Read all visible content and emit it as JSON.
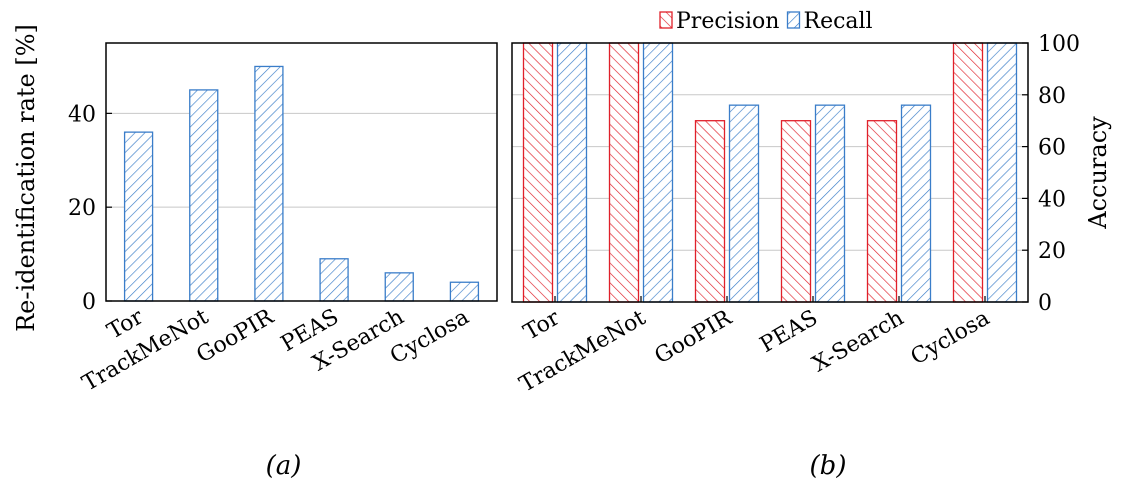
{
  "chart_data": [
    {
      "type": "bar",
      "caption": "(a)",
      "categories": [
        "Tor",
        "TrackMeNot",
        "GooPIR",
        "PEAS",
        "X-Search",
        "Cyclosa"
      ],
      "series": [
        {
          "values": [
            36,
            45,
            50,
            9,
            6,
            4
          ],
          "color": "#3a7dc9"
        }
      ],
      "xlabel": "",
      "ylabel": "Re-identification rate [%]",
      "ylim": [
        0,
        55
      ],
      "yticks": [
        0,
        20,
        40
      ],
      "grid": true,
      "hatch": "diagonal-right"
    },
    {
      "type": "bar",
      "caption": "(b)",
      "categories": [
        "Tor",
        "TrackMeNot",
        "GooPIR",
        "PEAS",
        "X-Search",
        "Cyclosa"
      ],
      "series": [
        {
          "name": "Precision",
          "values": [
            100,
            100,
            70,
            70,
            70,
            100
          ],
          "color": "#e0202a",
          "hatch": "diagonal-left"
        },
        {
          "name": "Recall",
          "values": [
            100,
            100,
            76,
            76,
            76,
            100
          ],
          "color": "#3a7dc9",
          "hatch": "diagonal-right"
        }
      ],
      "xlabel": "",
      "ylabel": "Accuracy",
      "ylim": [
        0,
        100
      ],
      "yticks": [
        0,
        20,
        40,
        60,
        80,
        100
      ],
      "yaxis_side": "right",
      "grid": true,
      "legend_position": "top"
    }
  ]
}
